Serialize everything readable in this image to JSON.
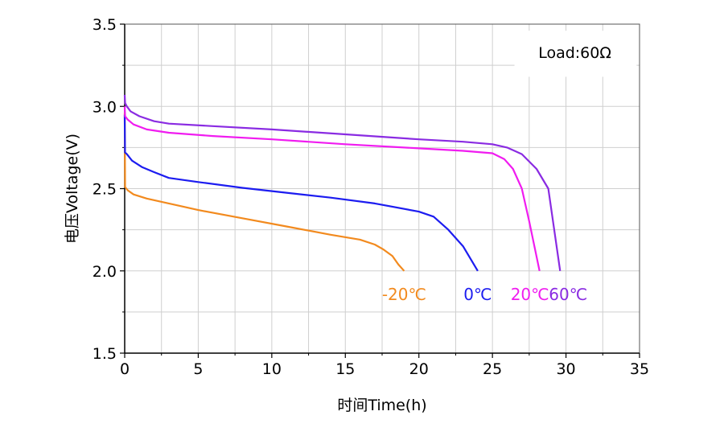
{
  "chart_data": {
    "type": "line",
    "title": "",
    "xlabel": "时间Time(h)",
    "ylabel": "电压Voltage(V)",
    "xlim": [
      0,
      35
    ],
    "ylim": [
      1.5,
      3.5
    ],
    "xticks": [
      0,
      5,
      10,
      15,
      20,
      25,
      30,
      35
    ],
    "yticks": [
      1.5,
      2.0,
      2.5,
      3.0,
      3.5
    ],
    "xtick_labels": [
      "0",
      "5",
      "10",
      "15",
      "20",
      "25",
      "30",
      "35"
    ],
    "ytick_labels": [
      "1.5",
      "2.0",
      "2.5",
      "3.0",
      "3.5"
    ],
    "grid": true,
    "annotation": "Load:60Ω",
    "series": [
      {
        "name": "-20℃",
        "color": "#f28a1e",
        "x": [
          0,
          0.03,
          0.2,
          0.6,
          1.5,
          3,
          5,
          8,
          11,
          14,
          16,
          17,
          17.6,
          18.2,
          18.6,
          19.0
        ],
        "y": [
          2.96,
          2.51,
          2.49,
          2.465,
          2.44,
          2.41,
          2.37,
          2.32,
          2.27,
          2.22,
          2.19,
          2.16,
          2.13,
          2.09,
          2.04,
          2.0
        ]
      },
      {
        "name": "0℃",
        "color": "#1c1cf0",
        "x": [
          0,
          0.02,
          0.15,
          0.5,
          1.2,
          2,
          3,
          5,
          8,
          11,
          14,
          17,
          20,
          21,
          22,
          23,
          24.0
        ],
        "y": [
          2.95,
          2.72,
          2.71,
          2.67,
          2.63,
          2.6,
          2.565,
          2.54,
          2.505,
          2.475,
          2.445,
          2.41,
          2.36,
          2.33,
          2.25,
          2.15,
          2.0
        ]
      },
      {
        "name": "20℃",
        "color": "#f01cf0",
        "x": [
          0,
          0.03,
          0.2,
          0.6,
          1.5,
          3,
          6,
          10,
          15,
          20,
          23,
          25,
          25.8,
          26.4,
          27,
          27.5,
          28.2
        ],
        "y": [
          3.0,
          2.94,
          2.92,
          2.89,
          2.86,
          2.84,
          2.82,
          2.8,
          2.77,
          2.745,
          2.73,
          2.715,
          2.68,
          2.62,
          2.5,
          2.3,
          2.0
        ]
      },
      {
        "name": "60℃",
        "color": "#8a2be2",
        "x": [
          0,
          0.03,
          0.15,
          0.4,
          1,
          2,
          3,
          6,
          10,
          15,
          20,
          23,
          25,
          26,
          27,
          28,
          28.8,
          29.6
        ],
        "y": [
          3.07,
          3.02,
          3.0,
          2.97,
          2.94,
          2.91,
          2.895,
          2.88,
          2.86,
          2.83,
          2.8,
          2.785,
          2.77,
          2.75,
          2.71,
          2.62,
          2.5,
          2.0
        ]
      }
    ]
  }
}
